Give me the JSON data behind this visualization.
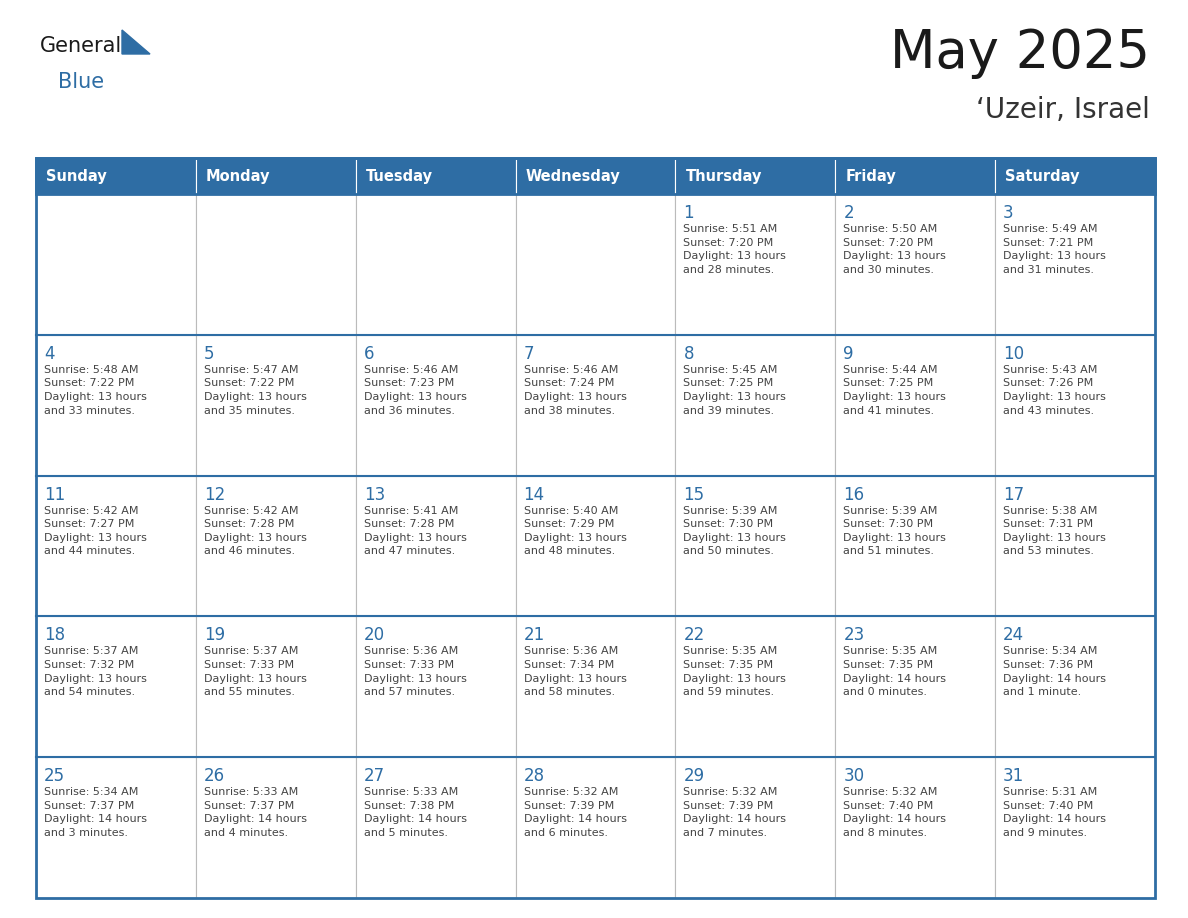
{
  "title": "May 2025",
  "subtitle": "‘Uzeir, Israel",
  "days_of_week": [
    "Sunday",
    "Monday",
    "Tuesday",
    "Wednesday",
    "Thursday",
    "Friday",
    "Saturday"
  ],
  "header_color": "#2E6DA4",
  "header_text_color": "#FFFFFF",
  "cell_bg_color": "#FFFFFF",
  "cell_border_color": "#BBBBBB",
  "day_number_color": "#2E6DA4",
  "cell_text_color": "#444444",
  "title_color": "#1a1a1a",
  "subtitle_color": "#333333",
  "logo_general_color": "#1a1a1a",
  "logo_blue_color": "#2E6DA4",
  "weeks": [
    [
      {
        "day": null,
        "text": ""
      },
      {
        "day": null,
        "text": ""
      },
      {
        "day": null,
        "text": ""
      },
      {
        "day": null,
        "text": ""
      },
      {
        "day": 1,
        "text": "Sunrise: 5:51 AM\nSunset: 7:20 PM\nDaylight: 13 hours\nand 28 minutes."
      },
      {
        "day": 2,
        "text": "Sunrise: 5:50 AM\nSunset: 7:20 PM\nDaylight: 13 hours\nand 30 minutes."
      },
      {
        "day": 3,
        "text": "Sunrise: 5:49 AM\nSunset: 7:21 PM\nDaylight: 13 hours\nand 31 minutes."
      }
    ],
    [
      {
        "day": 4,
        "text": "Sunrise: 5:48 AM\nSunset: 7:22 PM\nDaylight: 13 hours\nand 33 minutes."
      },
      {
        "day": 5,
        "text": "Sunrise: 5:47 AM\nSunset: 7:22 PM\nDaylight: 13 hours\nand 35 minutes."
      },
      {
        "day": 6,
        "text": "Sunrise: 5:46 AM\nSunset: 7:23 PM\nDaylight: 13 hours\nand 36 minutes."
      },
      {
        "day": 7,
        "text": "Sunrise: 5:46 AM\nSunset: 7:24 PM\nDaylight: 13 hours\nand 38 minutes."
      },
      {
        "day": 8,
        "text": "Sunrise: 5:45 AM\nSunset: 7:25 PM\nDaylight: 13 hours\nand 39 minutes."
      },
      {
        "day": 9,
        "text": "Sunrise: 5:44 AM\nSunset: 7:25 PM\nDaylight: 13 hours\nand 41 minutes."
      },
      {
        "day": 10,
        "text": "Sunrise: 5:43 AM\nSunset: 7:26 PM\nDaylight: 13 hours\nand 43 minutes."
      }
    ],
    [
      {
        "day": 11,
        "text": "Sunrise: 5:42 AM\nSunset: 7:27 PM\nDaylight: 13 hours\nand 44 minutes."
      },
      {
        "day": 12,
        "text": "Sunrise: 5:42 AM\nSunset: 7:28 PM\nDaylight: 13 hours\nand 46 minutes."
      },
      {
        "day": 13,
        "text": "Sunrise: 5:41 AM\nSunset: 7:28 PM\nDaylight: 13 hours\nand 47 minutes."
      },
      {
        "day": 14,
        "text": "Sunrise: 5:40 AM\nSunset: 7:29 PM\nDaylight: 13 hours\nand 48 minutes."
      },
      {
        "day": 15,
        "text": "Sunrise: 5:39 AM\nSunset: 7:30 PM\nDaylight: 13 hours\nand 50 minutes."
      },
      {
        "day": 16,
        "text": "Sunrise: 5:39 AM\nSunset: 7:30 PM\nDaylight: 13 hours\nand 51 minutes."
      },
      {
        "day": 17,
        "text": "Sunrise: 5:38 AM\nSunset: 7:31 PM\nDaylight: 13 hours\nand 53 minutes."
      }
    ],
    [
      {
        "day": 18,
        "text": "Sunrise: 5:37 AM\nSunset: 7:32 PM\nDaylight: 13 hours\nand 54 minutes."
      },
      {
        "day": 19,
        "text": "Sunrise: 5:37 AM\nSunset: 7:33 PM\nDaylight: 13 hours\nand 55 minutes."
      },
      {
        "day": 20,
        "text": "Sunrise: 5:36 AM\nSunset: 7:33 PM\nDaylight: 13 hours\nand 57 minutes."
      },
      {
        "day": 21,
        "text": "Sunrise: 5:36 AM\nSunset: 7:34 PM\nDaylight: 13 hours\nand 58 minutes."
      },
      {
        "day": 22,
        "text": "Sunrise: 5:35 AM\nSunset: 7:35 PM\nDaylight: 13 hours\nand 59 minutes."
      },
      {
        "day": 23,
        "text": "Sunrise: 5:35 AM\nSunset: 7:35 PM\nDaylight: 14 hours\nand 0 minutes."
      },
      {
        "day": 24,
        "text": "Sunrise: 5:34 AM\nSunset: 7:36 PM\nDaylight: 14 hours\nand 1 minute."
      }
    ],
    [
      {
        "day": 25,
        "text": "Sunrise: 5:34 AM\nSunset: 7:37 PM\nDaylight: 14 hours\nand 3 minutes."
      },
      {
        "day": 26,
        "text": "Sunrise: 5:33 AM\nSunset: 7:37 PM\nDaylight: 14 hours\nand 4 minutes."
      },
      {
        "day": 27,
        "text": "Sunrise: 5:33 AM\nSunset: 7:38 PM\nDaylight: 14 hours\nand 5 minutes."
      },
      {
        "day": 28,
        "text": "Sunrise: 5:32 AM\nSunset: 7:39 PM\nDaylight: 14 hours\nand 6 minutes."
      },
      {
        "day": 29,
        "text": "Sunrise: 5:32 AM\nSunset: 7:39 PM\nDaylight: 14 hours\nand 7 minutes."
      },
      {
        "day": 30,
        "text": "Sunrise: 5:32 AM\nSunset: 7:40 PM\nDaylight: 14 hours\nand 8 minutes."
      },
      {
        "day": 31,
        "text": "Sunrise: 5:31 AM\nSunset: 7:40 PM\nDaylight: 14 hours\nand 9 minutes."
      }
    ]
  ]
}
